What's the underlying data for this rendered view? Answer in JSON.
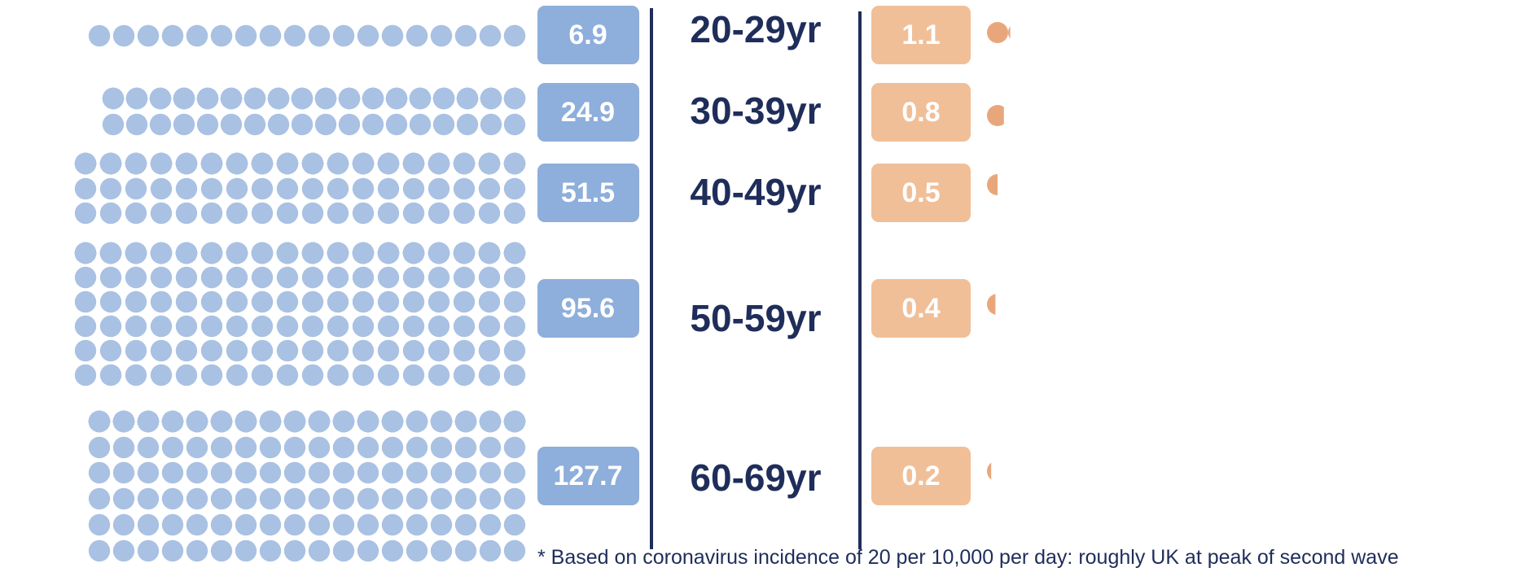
{
  "chart_data": {
    "type": "pictogram",
    "categories": [
      "20-29yr",
      "30-39yr",
      "40-49yr",
      "50-59yr",
      "60-69yr"
    ],
    "series": [
      {
        "values": [
          6.9,
          24.9,
          51.5,
          95.6,
          127.7
        ],
        "color": "#a9c1e3",
        "box_color": "#8eaedb"
      },
      {
        "values": [
          1.1,
          0.8,
          0.5,
          0.4,
          0.2
        ],
        "color": "#e8a77b",
        "box_color": "#f0bf98"
      }
    ],
    "value_labels_left": [
      "6.9",
      "24.9",
      "51.5",
      "95.6",
      "127.7"
    ],
    "value_labels_right": [
      "1.1",
      "0.8",
      "0.5",
      "0.4",
      "0.2"
    ],
    "footnote": "* Based on coronavirus incidence of 20 per 10,000 per day: roughly UK at peak of second wave",
    "colors": {
      "divider": "#1f2d5a",
      "age_text": "#1f2d5a"
    }
  }
}
